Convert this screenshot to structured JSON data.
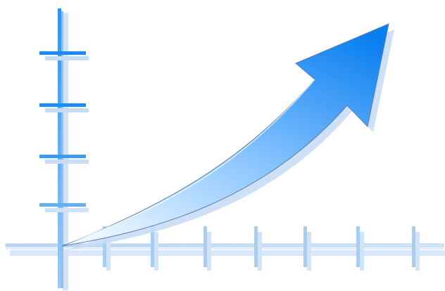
{
  "illustration": {
    "subject": "growth-arrow-on-axes",
    "colors": {
      "arrow_light": "#e6f3ff",
      "arrow_mid": "#6fb8ff",
      "arrow_dark": "#0a7ff0",
      "shadow": "#c9dcf7",
      "axis_line": "#5aa9f0",
      "tick_dark": "#1f8df5",
      "tick_light": "#bcd9f6"
    },
    "vertical_ticks": 4,
    "horizontal_ticks": 7
  }
}
